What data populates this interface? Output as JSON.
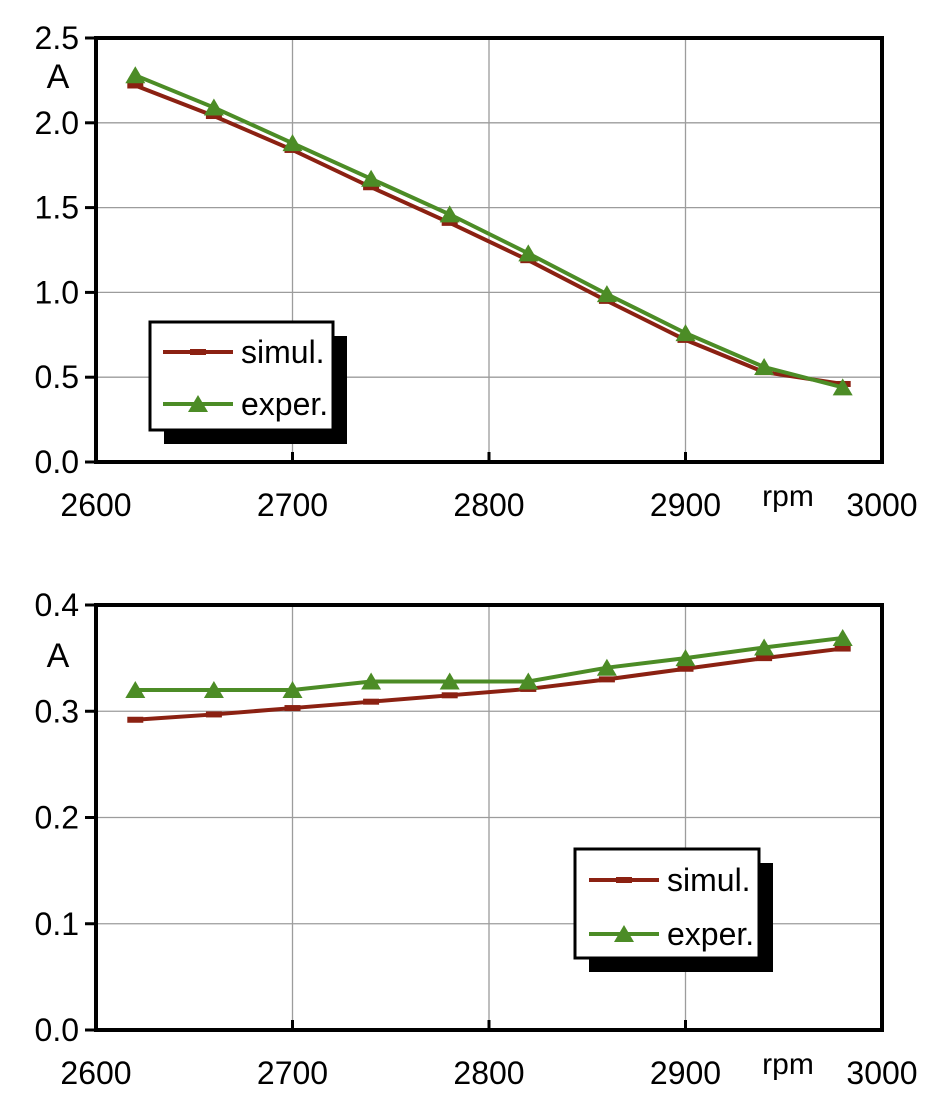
{
  "page": {
    "background": "#ffffff"
  },
  "colors": {
    "grid": "#9c9c9c",
    "axis": "#000000",
    "text": "#000000",
    "legend_shadow": "#000000",
    "legend_background": "#ffffff",
    "simul": "#8b2112",
    "exper": "#4c8c26"
  },
  "chart_data": [
    {
      "type": "line",
      "title": "",
      "ylabel": "A",
      "xlabel": "rpm",
      "x": [
        2620,
        2660,
        2700,
        2740,
        2780,
        2820,
        2860,
        2900,
        2940,
        2980
      ],
      "series": [
        {
          "name": "simul.",
          "color": "#8b2112",
          "marker": "dash",
          "values": [
            2.22,
            2.04,
            1.84,
            1.62,
            1.41,
            1.19,
            0.95,
            0.72,
            0.53,
            0.46
          ]
        },
        {
          "name": "exper.",
          "color": "#4c8c26",
          "marker": "triangle",
          "values": [
            2.28,
            2.09,
            1.88,
            1.67,
            1.46,
            1.23,
            0.99,
            0.76,
            0.56,
            0.44
          ]
        }
      ],
      "xlim": [
        2600,
        3000
      ],
      "ylim": [
        0,
        2.5
      ],
      "xticks": [
        2600,
        2700,
        2800,
        2900,
        3000
      ],
      "xtick_labels": [
        "2600",
        "2700",
        "2800",
        "2900",
        "3000"
      ],
      "yticks": [
        0,
        0.5,
        1.0,
        1.5,
        2.0,
        2.5
      ],
      "ytick_labels": [
        "0.0",
        "0.5",
        "1.0",
        "1.5",
        "2.0",
        "2.5"
      ],
      "grid": true,
      "legend_position": "left-center",
      "legend_entries": [
        "simul.",
        "exper."
      ]
    },
    {
      "type": "line",
      "title": "",
      "ylabel": "A",
      "xlabel": "rpm",
      "x": [
        2620,
        2660,
        2700,
        2740,
        2780,
        2820,
        2860,
        2900,
        2940,
        2980
      ],
      "series": [
        {
          "name": "simul.",
          "color": "#8b2112",
          "marker": "dash",
          "values": [
            0.292,
            0.297,
            0.303,
            0.309,
            0.315,
            0.321,
            0.33,
            0.34,
            0.35,
            0.359
          ]
        },
        {
          "name": "exper.",
          "color": "#4c8c26",
          "marker": "triangle",
          "values": [
            0.32,
            0.32,
            0.32,
            0.328,
            0.328,
            0.328,
            0.341,
            0.35,
            0.36,
            0.369
          ]
        }
      ],
      "xlim": [
        2600,
        3000
      ],
      "ylim": [
        0,
        0.4
      ],
      "xticks": [
        2600,
        2700,
        2800,
        2900,
        3000
      ],
      "xtick_labels": [
        "2600",
        "2700",
        "2800",
        "2900",
        "3000"
      ],
      "yticks": [
        0,
        0.1,
        0.2,
        0.3,
        0.4
      ],
      "ytick_labels": [
        "0.0",
        "0.1",
        "0.2",
        "0.3",
        "0.4"
      ],
      "grid": true,
      "legend_position": "bottom-right",
      "legend_entries": [
        "simul.",
        "exper."
      ]
    }
  ]
}
